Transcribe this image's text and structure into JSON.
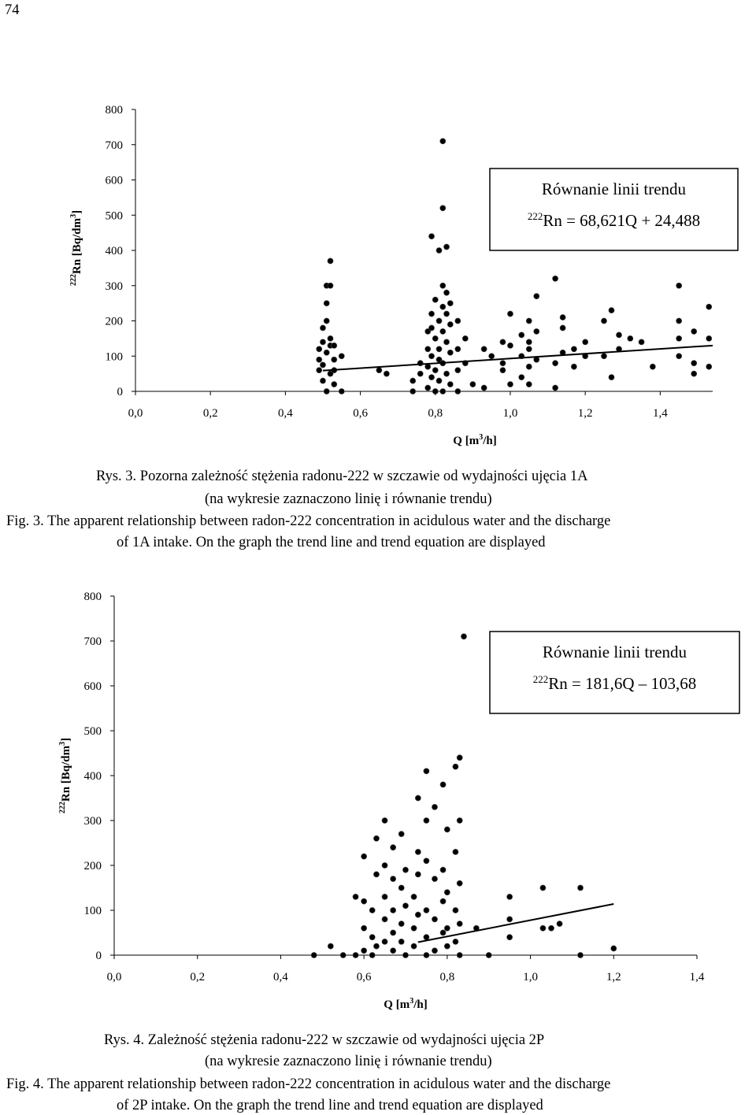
{
  "page_number": "74",
  "chart_data": [
    {
      "type": "scatter",
      "color": "#000000",
      "y_label": {
        "isotope": "222",
        "text": "Rn [Bq/dm",
        "sup": "3",
        "suffix": "]"
      },
      "x_label": {
        "text": "Q [m",
        "sup": "3",
        "suffix": "/h]"
      },
      "equation": {
        "title": "Równanie linii trendu",
        "isotope": "222",
        "text": "Rn = 68,621Q + 24,488"
      },
      "xlim": [
        0,
        1.54
      ],
      "ylim": [
        0,
        800
      ],
      "xticks": [
        {
          "value": 0,
          "label": "0,0"
        },
        {
          "value": 0.2,
          "label": "0,2"
        },
        {
          "value": 0.4,
          "label": "0,4"
        },
        {
          "value": 0.6,
          "label": "0,6"
        },
        {
          "value": 0.8,
          "label": "0,8"
        },
        {
          "value": 1,
          "label": "1,0"
        },
        {
          "value": 1.2,
          "label": "1,2"
        },
        {
          "value": 1.4,
          "label": "1,4"
        }
      ],
      "yticks": [
        0,
        100,
        200,
        300,
        400,
        500,
        600,
        700,
        800
      ],
      "trend_line": {
        "x": [
          0.5,
          1.54
        ],
        "values": [
          59,
          130
        ]
      },
      "x": [
        0.49,
        0.49,
        0.49,
        0.5,
        0.5,
        0.5,
        0.5,
        0.51,
        0.51,
        0.51,
        0.51,
        0.51,
        0.52,
        0.52,
        0.52,
        0.52,
        0.52,
        0.53,
        0.53,
        0.53,
        0.53,
        0.55,
        0.55,
        0.65,
        0.67,
        0.74,
        0.74,
        0.76,
        0.76,
        0.78,
        0.78,
        0.78,
        0.78,
        0.79,
        0.79,
        0.79,
        0.79,
        0.79,
        0.8,
        0.8,
        0.8,
        0.8,
        0.81,
        0.81,
        0.81,
        0.81,
        0.81,
        0.82,
        0.82,
        0.82,
        0.82,
        0.82,
        0.82,
        0.82,
        0.83,
        0.83,
        0.83,
        0.83,
        0.83,
        0.84,
        0.84,
        0.84,
        0.84,
        0.86,
        0.86,
        0.86,
        0.86,
        0.88,
        0.88,
        0.9,
        0.93,
        0.93,
        0.95,
        0.98,
        0.98,
        0.98,
        1.0,
        1.0,
        1.0,
        1.03,
        1.03,
        1.03,
        1.05,
        1.05,
        1.05,
        1.05,
        1.05,
        1.07,
        1.07,
        1.07,
        1.12,
        1.12,
        1.12,
        1.14,
        1.14,
        1.14,
        1.17,
        1.17,
        1.2,
        1.2,
        1.25,
        1.25,
        1.27,
        1.27,
        1.29,
        1.29,
        1.32,
        1.35,
        1.38,
        1.45,
        1.45,
        1.45,
        1.45,
        1.49,
        1.49,
        1.49,
        1.53,
        1.53,
        1.53
      ],
      "values": [
        90,
        60,
        120,
        140,
        30,
        75,
        180,
        250,
        300,
        200,
        110,
        0,
        370,
        300,
        150,
        50,
        130,
        90,
        20,
        60,
        130,
        0,
        100,
        60,
        50,
        30,
        0,
        80,
        50,
        120,
        10,
        170,
        70,
        440,
        180,
        220,
        100,
        40,
        150,
        0,
        260,
        60,
        400,
        200,
        120,
        30,
        90,
        520,
        710,
        300,
        240,
        170,
        80,
        0,
        410,
        280,
        220,
        140,
        50,
        250,
        190,
        110,
        20,
        200,
        120,
        60,
        0,
        150,
        80,
        20,
        120,
        10,
        100,
        80,
        140,
        60,
        220,
        130,
        20,
        100,
        160,
        40,
        200,
        140,
        70,
        20,
        120,
        270,
        170,
        90,
        320,
        80,
        10,
        210,
        180,
        110,
        120,
        70,
        100,
        140,
        200,
        100,
        230,
        40,
        120,
        160,
        150,
        140,
        70,
        300,
        200,
        150,
        100,
        80,
        170,
        50,
        240,
        150,
        70
      ]
    },
    {
      "type": "scatter",
      "color": "#000000",
      "y_label": {
        "isotope": "222",
        "text": "Rn [Bq/dm",
        "sup": "3",
        "suffix": "]"
      },
      "x_label": {
        "text": "Q [m",
        "sup": "3",
        "suffix": "/h]"
      },
      "equation": {
        "title": "Równanie linii trendu",
        "isotope": "222",
        "text": "Rn = 181,6Q – 103,68"
      },
      "xlim": [
        0,
        1.4
      ],
      "ylim": [
        0,
        800
      ],
      "xticks": [
        {
          "value": 0,
          "label": "0,0"
        },
        {
          "value": 0.2,
          "label": "0,2"
        },
        {
          "value": 0.4,
          "label": "0,4"
        },
        {
          "value": 0.6,
          "label": "0,6"
        },
        {
          "value": 0.8,
          "label": "0,8"
        },
        {
          "value": 1,
          "label": "1,0"
        },
        {
          "value": 1.2,
          "label": "1,2"
        },
        {
          "value": 1.4,
          "label": "1,4"
        }
      ],
      "yticks": [
        0,
        100,
        200,
        300,
        400,
        500,
        600,
        700,
        800
      ],
      "trend_line": {
        "x": [
          0.73,
          1.2
        ],
        "values": [
          29,
          114
        ]
      },
      "x": [
        0.48,
        0.52,
        0.55,
        0.58,
        0.58,
        0.6,
        0.6,
        0.6,
        0.6,
        0.62,
        0.62,
        0.62,
        0.63,
        0.63,
        0.63,
        0.65,
        0.65,
        0.65,
        0.65,
        0.65,
        0.67,
        0.67,
        0.67,
        0.67,
        0.67,
        0.69,
        0.69,
        0.69,
        0.69,
        0.7,
        0.7,
        0.7,
        0.72,
        0.72,
        0.72,
        0.73,
        0.73,
        0.73,
        0.73,
        0.75,
        0.75,
        0.75,
        0.75,
        0.75,
        0.75,
        0.77,
        0.77,
        0.77,
        0.77,
        0.79,
        0.79,
        0.79,
        0.79,
        0.8,
        0.8,
        0.8,
        0.8,
        0.82,
        0.82,
        0.82,
        0.82,
        0.83,
        0.83,
        0.83,
        0.83,
        0.83,
        0.84,
        0.87,
        0.9,
        0.95,
        0.95,
        0.95,
        1.03,
        1.03,
        1.05,
        1.07,
        1.12,
        1.12,
        1.2
      ],
      "values": [
        0,
        20,
        0,
        130,
        0,
        220,
        120,
        60,
        10,
        100,
        40,
        0,
        260,
        180,
        20,
        300,
        200,
        130,
        80,
        30,
        240,
        170,
        100,
        50,
        10,
        270,
        150,
        70,
        30,
        190,
        110,
        0,
        130,
        60,
        20,
        350,
        230,
        180,
        90,
        410,
        300,
        210,
        100,
        40,
        0,
        330,
        170,
        80,
        10,
        380,
        190,
        120,
        50,
        280,
        140,
        60,
        20,
        420,
        230,
        100,
        30,
        440,
        300,
        160,
        70,
        0,
        710,
        60,
        0,
        130,
        80,
        40,
        150,
        60,
        60,
        70,
        150,
        0,
        15
      ]
    }
  ],
  "captions": [
    [
      "Rys. 3.  Pozorna zależność stężenia radonu-222 w szczawie od wydajności ujęcia 1A",
      "(na wykresie zaznaczono linię i równanie trendu)",
      "Fig. 3.  The apparent relationship between radon-222 concentration in acidulous water and the discharge",
      "of 1A intake. On the graph the trend line and trend equation are displayed"
    ],
    [
      "Rys. 4.  Zależność stężenia radonu-222 w szczawie od wydajności ujęcia 2P",
      "(na wykresie zaznaczono linię i równanie trendu)",
      "Fig. 4.  The apparent relationship between radon-222 concentration in acidulous water and the discharge",
      "of 2P intake. On the graph the trend line and trend equation are displayed"
    ]
  ]
}
